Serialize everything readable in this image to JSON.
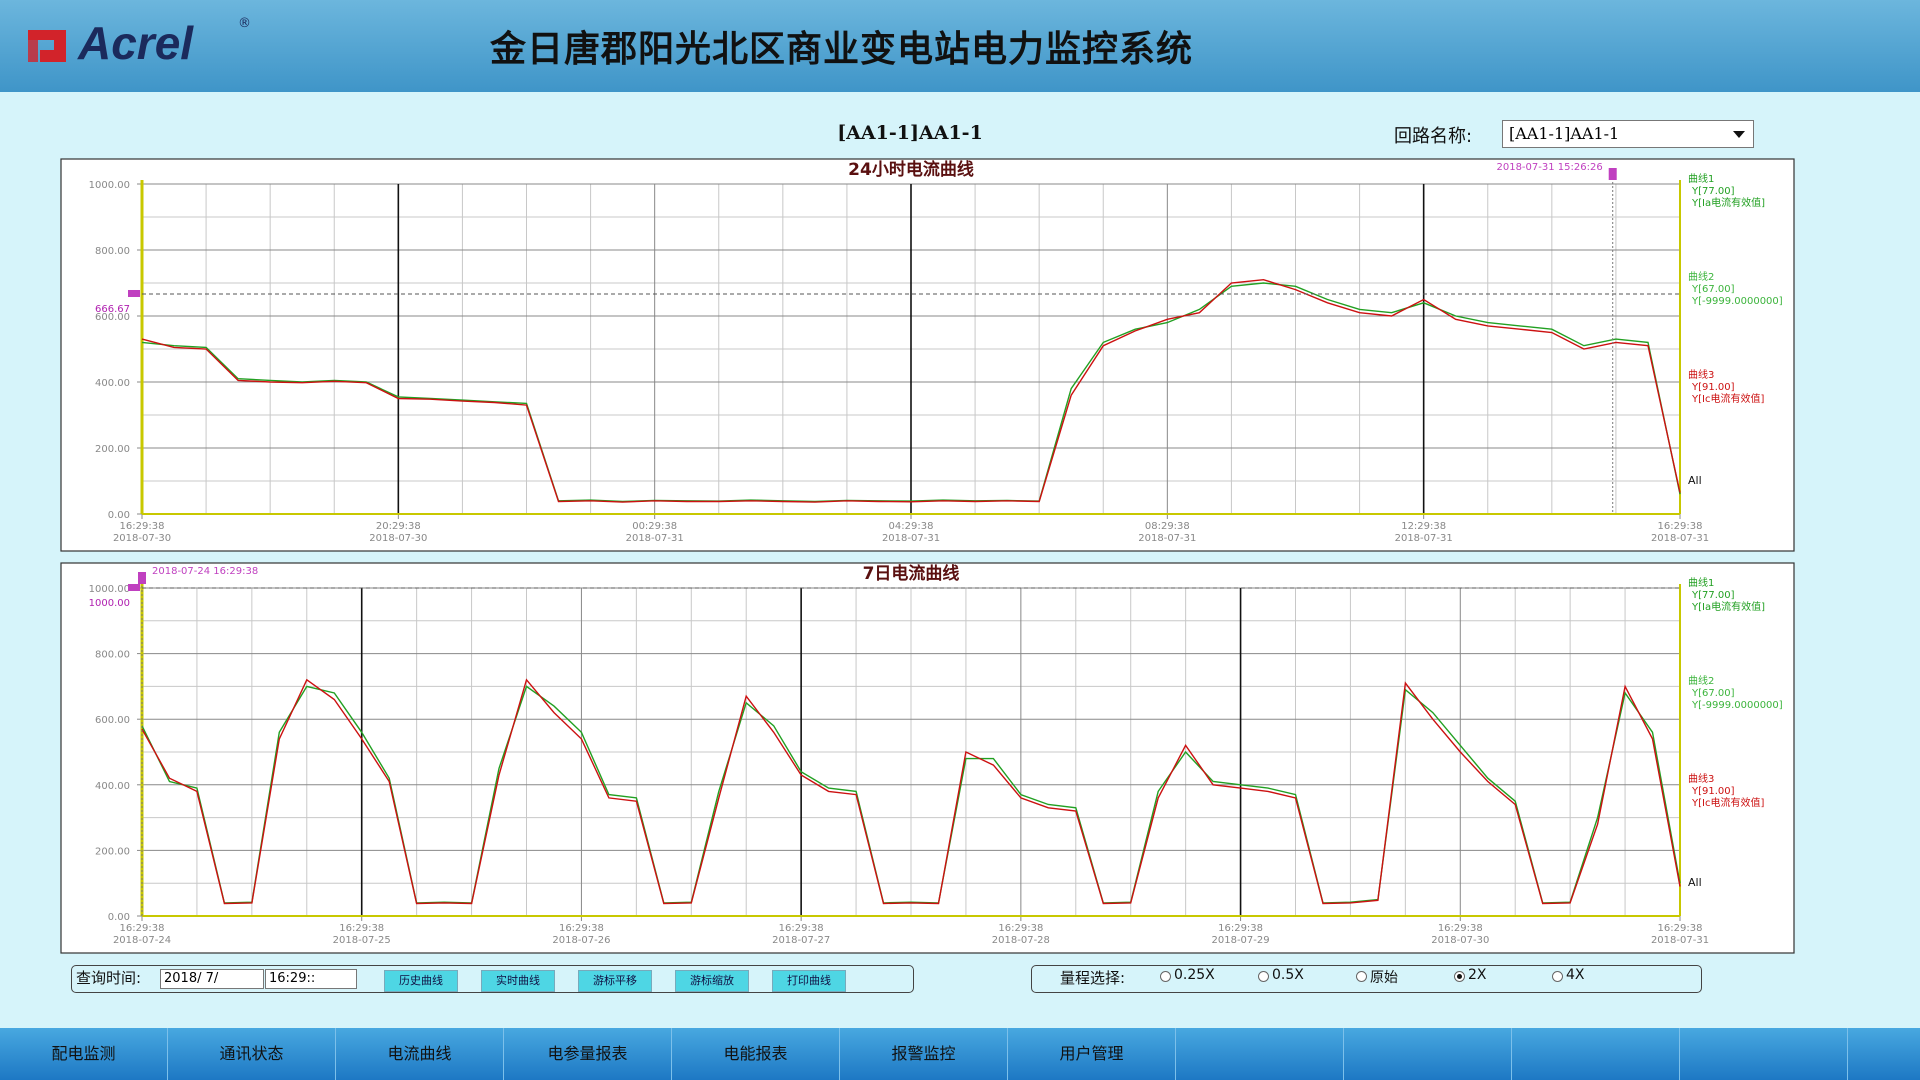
{
  "header": {
    "logo": "Acrel",
    "logo_mark": "®",
    "title": "金日唐郡阳光北区商业变电站电力监控系统"
  },
  "circuit": {
    "heading": "[AA1-1]AA1-1",
    "label": "回路名称:",
    "selected": "[AA1-1]AA1-1"
  },
  "chart_data": [
    {
      "type": "line",
      "title": "24小时电流曲线",
      "xlim": [
        0,
        24
      ],
      "ylim": [
        0,
        1000
      ],
      "yticks": [
        {
          "value": 0,
          "label": "0.00"
        },
        {
          "value": 200,
          "label": "200.00"
        },
        {
          "value": 400,
          "label": "400.00"
        },
        {
          "value": 600,
          "label": "600.00"
        },
        {
          "value": 800,
          "label": "800.00"
        },
        {
          "value": 1000,
          "label": "1000.00"
        }
      ],
      "xticks": [
        {
          "value": 0,
          "label": "16:29:38",
          "date": "2018-07-30"
        },
        {
          "value": 4,
          "label": "20:29:38",
          "date": "2018-07-30"
        },
        {
          "value": 8,
          "label": "00:29:38",
          "date": "2018-07-31"
        },
        {
          "value": 12,
          "label": "04:29:38",
          "date": "2018-07-31"
        },
        {
          "value": 16,
          "label": "08:29:38",
          "date": "2018-07-31"
        },
        {
          "value": 20,
          "label": "12:29:38",
          "date": "2018-07-31"
        },
        {
          "value": 24,
          "label": "16:29:38",
          "date": "2018-07-31"
        }
      ],
      "reference_line": 666.67,
      "cursor": {
        "x": 22.95,
        "label": "2018-07-31 15:26:26"
      },
      "end_label": "All",
      "grid": true,
      "x": [
        0,
        0.5,
        1,
        1.5,
        2,
        2.5,
        3,
        3.5,
        4,
        4.5,
        5,
        5.5,
        6,
        6.5,
        7,
        7.5,
        8,
        8.5,
        9,
        9.5,
        10,
        10.5,
        11,
        11.5,
        12,
        12.5,
        13,
        13.5,
        14,
        14.5,
        15,
        15.5,
        16,
        16.5,
        17,
        17.5,
        18,
        18.5,
        19,
        19.5,
        20,
        20.5,
        21,
        21.5,
        22,
        22.5,
        23,
        23.5,
        24
      ],
      "series": [
        {
          "name": "曲线1",
          "info": [
            "Y[77.00]",
            "Y[Ia电流有效值]"
          ],
          "color": "#22a022",
          "values": [
            520,
            510,
            505,
            410,
            405,
            400,
            405,
            400,
            355,
            350,
            345,
            340,
            335,
            40,
            42,
            38,
            41,
            40,
            39,
            42,
            40,
            38,
            41,
            40,
            39,
            42,
            40,
            41,
            39,
            380,
            520,
            560,
            580,
            620,
            690,
            700,
            690,
            650,
            620,
            610,
            640,
            600,
            580,
            570,
            560,
            510,
            530,
            520,
            60
          ]
        },
        {
          "name": "曲线2",
          "info": [
            "Y[67.00]",
            "Y[-9999.0000000]"
          ],
          "color": "#3cb43c"
        },
        {
          "name": "曲线3",
          "info": [
            "Y[91.00]",
            "Y[Ic电流有效值]"
          ],
          "color": "#cc1111",
          "values": [
            530,
            505,
            500,
            405,
            400,
            398,
            402,
            398,
            350,
            348,
            342,
            338,
            330,
            38,
            40,
            36,
            40,
            38,
            38,
            40,
            38,
            36,
            40,
            38,
            37,
            40,
            38,
            40,
            38,
            360,
            510,
            555,
            590,
            610,
            700,
            710,
            680,
            640,
            610,
            600,
            650,
            590,
            570,
            560,
            550,
            500,
            520,
            510,
            65
          ]
        }
      ]
    },
    {
      "type": "line",
      "title": "7日电流曲线",
      "xlim": [
        0,
        168
      ],
      "ylim": [
        0,
        1000
      ],
      "yticks": [
        {
          "value": 0,
          "label": "0.00"
        },
        {
          "value": 200,
          "label": "200.00"
        },
        {
          "value": 400,
          "label": "400.00"
        },
        {
          "value": 600,
          "label": "600.00"
        },
        {
          "value": 800,
          "label": "800.00"
        },
        {
          "value": 1000,
          "label": "1000.00"
        }
      ],
      "xticks": [
        {
          "value": 0,
          "label": "16:29:38",
          "date": "2018-07-24"
        },
        {
          "value": 24,
          "label": "16:29:38",
          "date": "2018-07-25"
        },
        {
          "value": 48,
          "label": "16:29:38",
          "date": "2018-07-26"
        },
        {
          "value": 72,
          "label": "16:29:38",
          "date": "2018-07-27"
        },
        {
          "value": 96,
          "label": "16:29:38",
          "date": "2018-07-28"
        },
        {
          "value": 120,
          "label": "16:29:38",
          "date": "2018-07-29"
        },
        {
          "value": 144,
          "label": "16:29:38",
          "date": "2018-07-30"
        },
        {
          "value": 168,
          "label": "16:29:38",
          "date": "2018-07-31"
        }
      ],
      "reference_line": {
        "value": 1000,
        "label": "1000.00"
      },
      "cursor": {
        "x": 0,
        "label": "2018-07-24 16:29:38"
      },
      "end_label": "All",
      "grid": true,
      "x": [
        0,
        3,
        6,
        9,
        12,
        15,
        18,
        21,
        24,
        27,
        30,
        33,
        36,
        39,
        42,
        45,
        48,
        51,
        54,
        57,
        60,
        63,
        66,
        69,
        72,
        75,
        78,
        81,
        84,
        87,
        90,
        93,
        96,
        99,
        102,
        105,
        108,
        111,
        114,
        117,
        120,
        123,
        126,
        129,
        132,
        135,
        138,
        141,
        144,
        147,
        150,
        153,
        156,
        159,
        162,
        165,
        168
      ],
      "series": [
        {
          "name": "曲线1",
          "info": [
            "Y[77.00]",
            "Y[Ia电流有效值]"
          ],
          "color": "#22a022",
          "values": [
            580,
            410,
            390,
            40,
            42,
            560,
            700,
            680,
            560,
            420,
            40,
            42,
            40,
            450,
            700,
            640,
            560,
            370,
            360,
            40,
            42,
            380,
            650,
            580,
            440,
            390,
            380,
            40,
            42,
            40,
            480,
            480,
            370,
            340,
            330,
            40,
            42,
            380,
            500,
            410,
            400,
            390,
            370,
            40,
            42,
            50,
            690,
            620,
            520,
            420,
            350,
            40,
            42,
            300,
            680,
            560,
            100
          ]
        },
        {
          "name": "曲线2",
          "info": [
            "Y[67.00]",
            "Y[-9999.0000000]"
          ],
          "color": "#3cb43c"
        },
        {
          "name": "曲线3",
          "info": [
            "Y[91.00]",
            "Y[Ic电流有效值]"
          ],
          "color": "#cc1111",
          "values": [
            570,
            420,
            380,
            38,
            40,
            540,
            720,
            660,
            540,
            410,
            38,
            40,
            38,
            430,
            720,
            620,
            540,
            360,
            350,
            38,
            40,
            360,
            670,
            560,
            430,
            380,
            370,
            38,
            40,
            38,
            500,
            460,
            360,
            330,
            320,
            38,
            40,
            360,
            520,
            400,
            390,
            380,
            360,
            38,
            40,
            48,
            710,
            600,
            500,
            410,
            340,
            38,
            40,
            280,
            700,
            540,
            90
          ]
        }
      ]
    }
  ],
  "query": {
    "label": "查询时间:",
    "date": "2018/ 7/",
    "time": "16:29::",
    "buttons": [
      "历史曲线",
      "实时曲线",
      "游标平移",
      "游标缩放",
      "打印曲线"
    ]
  },
  "scale": {
    "label": "量程选择:",
    "options": [
      "0.25X",
      "0.5X",
      "原始",
      "2X",
      "4X"
    ],
    "selected": 3
  },
  "nav": [
    "配电监测",
    "通讯状态",
    "电流曲线",
    "电参量报表",
    "电能报表",
    "报警监控",
    "用户管理"
  ]
}
